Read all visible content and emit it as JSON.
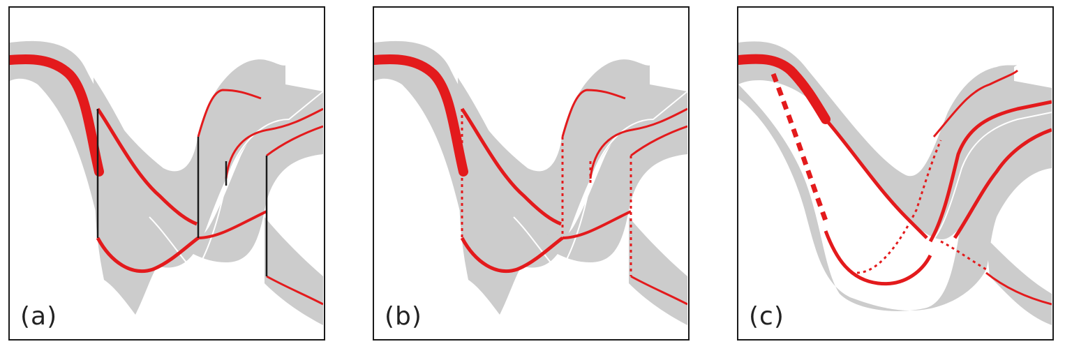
{
  "figure": {
    "colors": {
      "band": "#cccccc",
      "highlight": "#e31a1c",
      "frame": "#1a1a1a",
      "connector": "#1a1a1a",
      "background": "#ffffff"
    },
    "panels": [
      {
        "id": "a",
        "label": "(a)",
        "connector_style": "solid"
      },
      {
        "id": "b",
        "label": "(b)",
        "connector_style": "dotted"
      },
      {
        "id": "c",
        "label": "(c)",
        "connector_style": "curved"
      }
    ]
  }
}
